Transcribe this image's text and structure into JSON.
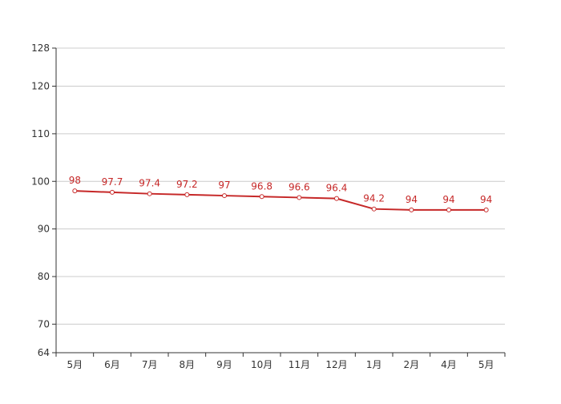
{
  "chart_data": {
    "type": "line",
    "categories": [
      "5月",
      "6月",
      "7月",
      "8月",
      "9月",
      "10月",
      "11月",
      "12月",
      "1月",
      "2月",
      "4月",
      "5月"
    ],
    "series": [
      {
        "values": [
          98,
          97.7,
          97.4,
          97.2,
          97,
          96.8,
          96.6,
          96.4,
          94.2,
          94,
          94,
          94
        ]
      }
    ],
    "data_labels": [
      "98",
      "97.7",
      "97.4",
      "97.2",
      "97",
      "96.8",
      "96.6",
      "96.4",
      "94.2",
      "94",
      "94",
      "94"
    ],
    "y_ticks": [
      64,
      70,
      80,
      90,
      100,
      110,
      120,
      128
    ],
    "y_tick_labels": [
      "64",
      "70",
      "80",
      "90",
      "100",
      "110",
      "120",
      "128"
    ],
    "ylim": [
      64,
      128
    ],
    "grid": true,
    "legend": "none",
    "colors": {
      "line": "#c62828",
      "marker_fill": "#ffffff",
      "grid": "#cccccc",
      "axis": "#333333"
    }
  }
}
